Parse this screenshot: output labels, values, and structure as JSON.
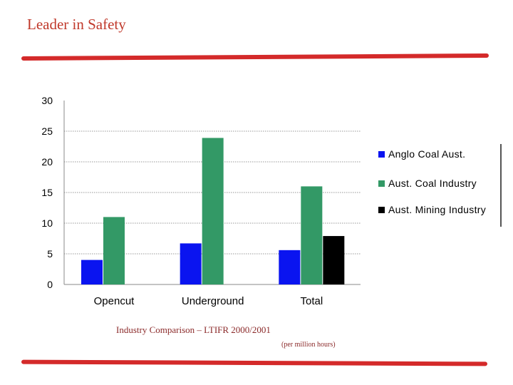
{
  "slide": {
    "title": "Leader in Safety",
    "caption": "Industry Comparison – LTIFR 2000/2001",
    "subcaption": "(per million hours)"
  },
  "chart_data": {
    "type": "bar",
    "categories": [
      "Opencut",
      "Underground",
      "Total"
    ],
    "series": [
      {
        "name": "Anglo Coal Aust.",
        "color": "#0a14f0",
        "values": [
          4,
          6.7,
          5.6
        ]
      },
      {
        "name": "Aust. Coal Industry",
        "color": "#339966",
        "values": [
          11,
          23.9,
          16
        ]
      },
      {
        "name": "Aust. Mining Industry",
        "color": "#000000",
        "values": [
          null,
          null,
          7.9
        ]
      }
    ],
    "ylim": [
      0,
      30
    ],
    "yticks": [
      "0",
      "5",
      "10",
      "15",
      "20",
      "25",
      "30"
    ],
    "grid": true,
    "legend_position": "right"
  }
}
